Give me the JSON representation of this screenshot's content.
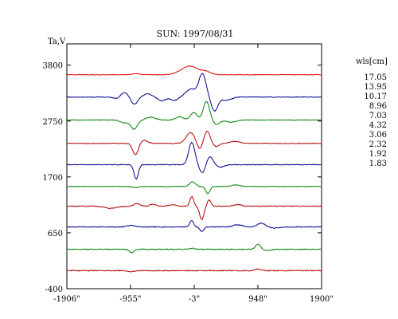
{
  "chart_data": {
    "type": "line",
    "title": "SUN: 1997/08/31",
    "ylabel": "Ta,V",
    "legend_title": "wls[cm]",
    "legend_placement": "right",
    "xlim": [
      -1906,
      1900
    ],
    "ylim": [
      -400,
      4200
    ],
    "x_ticks": [
      {
        "value": -1906,
        "label": "-1906\""
      },
      {
        "value": -955,
        "label": "-955\""
      },
      {
        "value": -3,
        "label": "-3\""
      },
      {
        "value": 948,
        "label": "948\""
      },
      {
        "value": 1900,
        "label": "1900\""
      }
    ],
    "y_ticks": [
      {
        "value": 3800,
        "label": "3800"
      },
      {
        "value": 2750,
        "label": "2750"
      },
      {
        "value": 1700,
        "label": "1700"
      },
      {
        "value": 650,
        "label": "650"
      },
      {
        "value": -400,
        "label": "-400"
      }
    ],
    "series": [
      {
        "name": "17.05",
        "color": "#e00000",
        "baseline": 3620,
        "noise": 10,
        "features": [
          [
            -880,
            80,
            22
          ],
          [
            -70,
            180,
            160
          ],
          [
            180,
            90,
            50
          ]
        ]
      },
      {
        "name": "13.95",
        "color": "#00008b",
        "baseline": 3200,
        "noise": 14,
        "features": [
          [
            -1150,
            70,
            -45
          ],
          [
            -1050,
            90,
            90
          ],
          [
            -900,
            70,
            -140
          ],
          [
            -700,
            90,
            60
          ],
          [
            -490,
            80,
            -70
          ],
          [
            -300,
            80,
            -60
          ],
          [
            -50,
            110,
            150
          ],
          [
            120,
            75,
            430
          ],
          [
            300,
            70,
            -260
          ],
          [
            480,
            100,
            -60
          ]
        ]
      },
      {
        "name": "10.17",
        "color": "#008000",
        "baseline": 2770,
        "noise": 12,
        "features": [
          [
            -1050,
            80,
            -55
          ],
          [
            -900,
            70,
            -170
          ],
          [
            -650,
            100,
            50
          ],
          [
            -220,
            80,
            60
          ],
          [
            -10,
            70,
            140
          ],
          [
            180,
            65,
            350
          ],
          [
            330,
            70,
            -80
          ],
          [
            550,
            100,
            -40
          ]
        ]
      },
      {
        "name": "8.96",
        "color": "#b00000",
        "baseline": 2330,
        "noise": 12,
        "features": [
          [
            -880,
            60,
            -220
          ],
          [
            -760,
            80,
            60
          ],
          [
            -60,
            90,
            200
          ],
          [
            80,
            55,
            -120
          ],
          [
            190,
            65,
            230
          ],
          [
            320,
            70,
            -60
          ],
          [
            600,
            100,
            40
          ]
        ]
      },
      {
        "name": "7.03",
        "color": "#00008b",
        "baseline": 1930,
        "noise": 12,
        "features": [
          [
            -870,
            45,
            -270
          ],
          [
            -40,
            65,
            420
          ],
          [
            120,
            60,
            -160
          ],
          [
            230,
            70,
            150
          ],
          [
            380,
            80,
            -50
          ]
        ]
      },
      {
        "name": "4.32",
        "color": "#008000",
        "baseline": 1520,
        "noise": 10,
        "features": [
          [
            -30,
            60,
            90
          ],
          [
            200,
            45,
            -130
          ],
          [
            620,
            80,
            30
          ],
          [
            -880,
            70,
            -20
          ]
        ]
      },
      {
        "name": "3.06",
        "color": "#b00000",
        "baseline": 1150,
        "noise": 14,
        "features": [
          [
            -1250,
            120,
            -40
          ],
          [
            -860,
            60,
            55
          ],
          [
            -620,
            60,
            40
          ],
          [
            -330,
            80,
            30
          ],
          [
            -40,
            40,
            180
          ],
          [
            110,
            45,
            -250
          ],
          [
            220,
            40,
            120
          ],
          [
            650,
            80,
            30
          ]
        ]
      },
      {
        "name": "2.32",
        "color": "#00008b",
        "baseline": 760,
        "noise": 16,
        "features": [
          [
            -950,
            80,
            30
          ],
          [
            -40,
            40,
            120
          ],
          [
            110,
            40,
            -90
          ],
          [
            650,
            100,
            40
          ],
          [
            1000,
            80,
            70
          ],
          [
            1200,
            100,
            -20
          ]
        ]
      },
      {
        "name": "1.92",
        "color": "#008000",
        "baseline": 340,
        "noise": 14,
        "features": [
          [
            -940,
            50,
            -60
          ],
          [
            -30,
            50,
            20
          ],
          [
            950,
            50,
            100
          ],
          [
            1100,
            80,
            -20
          ]
        ]
      },
      {
        "name": "1.83",
        "color": "#b00000",
        "baseline": -60,
        "noise": 18,
        "features": [
          [
            -950,
            60,
            -25
          ],
          [
            950,
            60,
            30
          ]
        ]
      }
    ]
  }
}
